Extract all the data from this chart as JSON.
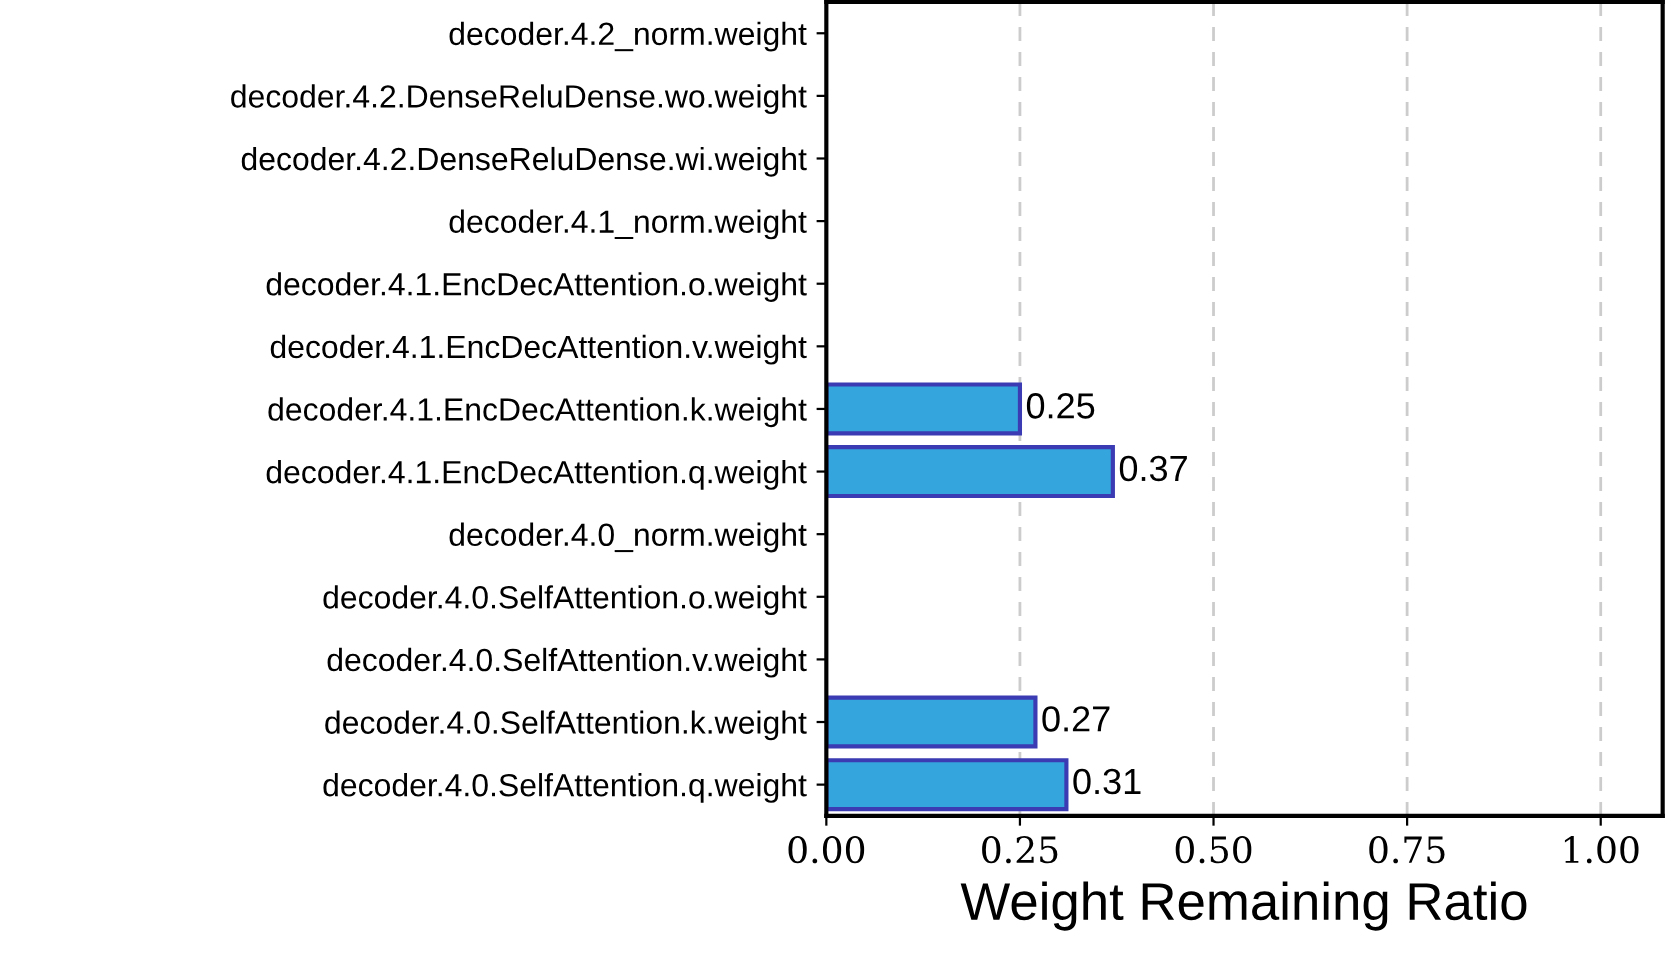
{
  "chart_data": {
    "type": "bar",
    "orientation": "horizontal",
    "xlabel": "Weight Remaining Ratio",
    "categories": [
      "decoder.4.2_norm.weight",
      "decoder.4.2.DenseReluDense.wo.weight",
      "decoder.4.2.DenseReluDense.wi.weight",
      "decoder.4.1_norm.weight",
      "decoder.4.1.EncDecAttention.o.weight",
      "decoder.4.1.EncDecAttention.v.weight",
      "decoder.4.1.EncDecAttention.k.weight",
      "decoder.4.1.EncDecAttention.q.weight",
      "decoder.4.0_norm.weight",
      "decoder.4.0.SelfAttention.o.weight",
      "decoder.4.0.SelfAttention.v.weight",
      "decoder.4.0.SelfAttention.k.weight",
      "decoder.4.0.SelfAttention.q.weight"
    ],
    "values": [
      null,
      null,
      null,
      null,
      null,
      null,
      0.25,
      0.37,
      null,
      null,
      null,
      0.27,
      0.31
    ],
    "value_labels": [
      null,
      null,
      null,
      null,
      null,
      null,
      "0.25",
      "0.37",
      null,
      null,
      null,
      "0.27",
      "0.31"
    ],
    "color": "#35a6dd",
    "xlim": [
      0,
      1.08
    ],
    "xticks": [
      {
        "value": 0,
        "label": "0.00"
      },
      {
        "value": 0.25,
        "label": "0.25"
      },
      {
        "value": 0.5,
        "label": "0.50"
      },
      {
        "value": 0.75,
        "label": "0.75"
      },
      {
        "value": 1,
        "label": "1.00"
      }
    ],
    "grid": "x",
    "legend": false
  }
}
